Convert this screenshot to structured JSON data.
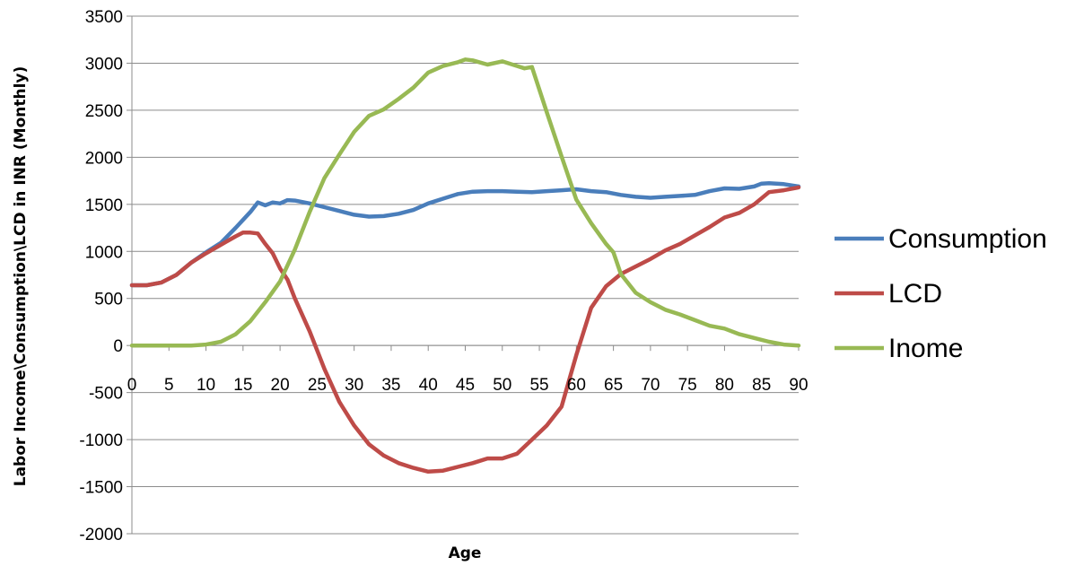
{
  "chart_data": {
    "type": "line",
    "xlabel": "Age",
    "ylabel": "Labor Income\\Consumption\\LCD in INR (Monthly)",
    "xlim": [
      0,
      90
    ],
    "ylim": [
      -2000,
      3500
    ],
    "x_ticks": [
      0,
      5,
      10,
      15,
      20,
      25,
      30,
      35,
      40,
      45,
      50,
      55,
      60,
      65,
      70,
      75,
      80,
      85,
      90
    ],
    "y_ticks": [
      3500,
      3000,
      2500,
      2000,
      1500,
      1000,
      500,
      0,
      -500,
      -1000,
      -1500,
      -2000
    ],
    "grid": "horizontal",
    "legend_position": "right",
    "series": [
      {
        "name": "Consumption",
        "color": "#4a7ebb",
        "points": [
          [
            0,
            640
          ],
          [
            2,
            640
          ],
          [
            4,
            670
          ],
          [
            6,
            750
          ],
          [
            8,
            880
          ],
          [
            10,
            990
          ],
          [
            12,
            1090
          ],
          [
            14,
            1250
          ],
          [
            16,
            1420
          ],
          [
            17,
            1520
          ],
          [
            18,
            1490
          ],
          [
            19,
            1520
          ],
          [
            20,
            1510
          ],
          [
            21,
            1545
          ],
          [
            22,
            1540
          ],
          [
            24,
            1510
          ],
          [
            26,
            1470
          ],
          [
            28,
            1430
          ],
          [
            30,
            1390
          ],
          [
            32,
            1370
          ],
          [
            34,
            1375
          ],
          [
            36,
            1400
          ],
          [
            38,
            1440
          ],
          [
            40,
            1510
          ],
          [
            42,
            1560
          ],
          [
            44,
            1610
          ],
          [
            46,
            1635
          ],
          [
            48,
            1640
          ],
          [
            50,
            1640
          ],
          [
            52,
            1635
          ],
          [
            54,
            1630
          ],
          [
            56,
            1640
          ],
          [
            58,
            1650
          ],
          [
            60,
            1660
          ],
          [
            62,
            1640
          ],
          [
            64,
            1630
          ],
          [
            66,
            1600
          ],
          [
            68,
            1580
          ],
          [
            70,
            1570
          ],
          [
            72,
            1580
          ],
          [
            74,
            1590
          ],
          [
            76,
            1600
          ],
          [
            78,
            1640
          ],
          [
            80,
            1670
          ],
          [
            82,
            1665
          ],
          [
            84,
            1690
          ],
          [
            85,
            1720
          ],
          [
            86,
            1725
          ],
          [
            88,
            1715
          ],
          [
            90,
            1690
          ]
        ]
      },
      {
        "name": "LCD",
        "color": "#be4b48",
        "points": [
          [
            0,
            640
          ],
          [
            2,
            640
          ],
          [
            4,
            670
          ],
          [
            6,
            750
          ],
          [
            8,
            880
          ],
          [
            10,
            980
          ],
          [
            12,
            1070
          ],
          [
            14,
            1160
          ],
          [
            15,
            1200
          ],
          [
            16,
            1200
          ],
          [
            17,
            1190
          ],
          [
            18,
            1080
          ],
          [
            19,
            980
          ],
          [
            20,
            820
          ],
          [
            21,
            700
          ],
          [
            22,
            500
          ],
          [
            24,
            150
          ],
          [
            26,
            -250
          ],
          [
            28,
            -600
          ],
          [
            30,
            -850
          ],
          [
            32,
            -1050
          ],
          [
            34,
            -1170
          ],
          [
            36,
            -1250
          ],
          [
            38,
            -1300
          ],
          [
            40,
            -1340
          ],
          [
            42,
            -1330
          ],
          [
            44,
            -1290
          ],
          [
            46,
            -1250
          ],
          [
            48,
            -1200
          ],
          [
            50,
            -1200
          ],
          [
            52,
            -1150
          ],
          [
            54,
            -1000
          ],
          [
            56,
            -850
          ],
          [
            58,
            -650
          ],
          [
            60,
            -100
          ],
          [
            62,
            400
          ],
          [
            64,
            630
          ],
          [
            66,
            760
          ],
          [
            68,
            840
          ],
          [
            70,
            920
          ],
          [
            72,
            1010
          ],
          [
            74,
            1080
          ],
          [
            76,
            1170
          ],
          [
            78,
            1260
          ],
          [
            80,
            1360
          ],
          [
            82,
            1410
          ],
          [
            84,
            1500
          ],
          [
            86,
            1630
          ],
          [
            88,
            1650
          ],
          [
            90,
            1680
          ]
        ]
      },
      {
        "name": "Inome",
        "color": "#98b954",
        "points": [
          [
            0,
            0
          ],
          [
            2,
            0
          ],
          [
            4,
            0
          ],
          [
            6,
            0
          ],
          [
            8,
            0
          ],
          [
            10,
            10
          ],
          [
            12,
            40
          ],
          [
            14,
            120
          ],
          [
            16,
            260
          ],
          [
            18,
            460
          ],
          [
            20,
            680
          ],
          [
            22,
            1020
          ],
          [
            24,
            1420
          ],
          [
            26,
            1780
          ],
          [
            28,
            2030
          ],
          [
            30,
            2270
          ],
          [
            32,
            2440
          ],
          [
            34,
            2510
          ],
          [
            36,
            2620
          ],
          [
            38,
            2740
          ],
          [
            40,
            2900
          ],
          [
            42,
            2970
          ],
          [
            44,
            3010
          ],
          [
            45,
            3040
          ],
          [
            46,
            3030
          ],
          [
            48,
            2985
          ],
          [
            50,
            3020
          ],
          [
            52,
            2970
          ],
          [
            53,
            2945
          ],
          [
            54,
            2960
          ],
          [
            56,
            2480
          ],
          [
            58,
            2010
          ],
          [
            60,
            1550
          ],
          [
            62,
            1300
          ],
          [
            64,
            1080
          ],
          [
            65,
            990
          ],
          [
            66,
            760
          ],
          [
            68,
            560
          ],
          [
            70,
            460
          ],
          [
            72,
            380
          ],
          [
            74,
            330
          ],
          [
            76,
            270
          ],
          [
            78,
            210
          ],
          [
            80,
            180
          ],
          [
            82,
            120
          ],
          [
            84,
            80
          ],
          [
            86,
            40
          ],
          [
            88,
            10
          ],
          [
            90,
            0
          ]
        ]
      }
    ]
  }
}
